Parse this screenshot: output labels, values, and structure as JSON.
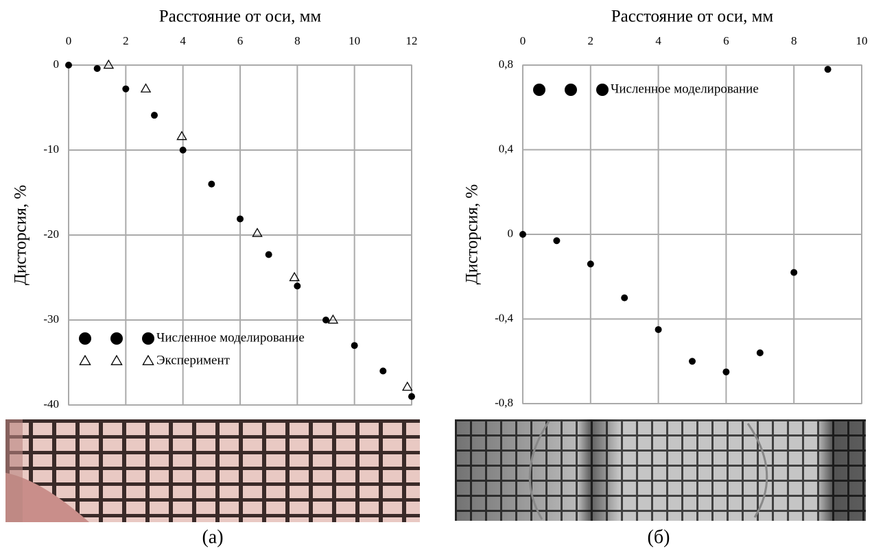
{
  "chart_data": [
    {
      "type": "scatter",
      "title": "Расстояние от оси, мм",
      "ylabel": "Дисторсия, %",
      "caption": "(а)",
      "xlim": [
        0,
        12
      ],
      "xticks": [
        0,
        2,
        4,
        6,
        8,
        10,
        12
      ],
      "ylim": [
        -40,
        0
      ],
      "yticks": [
        0,
        -10,
        -20,
        -30,
        -40
      ],
      "grid": true,
      "legend_position": "lower left",
      "series": [
        {
          "name": "Численное моделирование",
          "color": "#000000",
          "marker": "circle",
          "x": [
            0,
            1,
            2,
            3,
            4,
            5,
            6,
            7,
            8,
            9,
            10,
            11,
            12
          ],
          "values": [
            0,
            -0.4,
            -2.8,
            -5.9,
            -10,
            -14,
            -18.1,
            -22.3,
            -26,
            -30,
            -33,
            -36,
            -39
          ]
        },
        {
          "name": "Эксперимент",
          "color": "#000000",
          "marker": "triangle",
          "x": [
            1.4,
            2.7,
            3.96,
            6.6,
            7.9,
            9.25,
            11.85
          ],
          "values": [
            0,
            -2.8,
            -8.4,
            -19.8,
            -25,
            -30,
            -37.9
          ]
        }
      ]
    },
    {
      "type": "scatter",
      "title": "Расстояние от оси, мм",
      "ylabel": "Дисторсия, %",
      "caption": "(б)",
      "xlim": [
        0,
        10
      ],
      "xticks": [
        0,
        2,
        4,
        6,
        8,
        10
      ],
      "ylim": [
        -0.8,
        0.8
      ],
      "yticks": [
        {
          "value": 0.8,
          "label": "0,8"
        },
        {
          "value": 0.4,
          "label": "0,4"
        },
        0,
        {
          "value": -0.4,
          "label": "-0,4"
        },
        {
          "value": -0.8,
          "label": "-0,8"
        }
      ],
      "grid": true,
      "legend_position": "upper left",
      "series": [
        {
          "name": "Численное моделирование",
          "color": "#000000",
          "marker": "circle",
          "x": [
            0,
            1,
            2,
            3,
            4,
            5,
            6,
            7,
            8,
            9
          ],
          "values": [
            0,
            -0.03,
            -0.14,
            -0.3,
            -0.45,
            -0.6,
            -0.65,
            -0.56,
            -0.18,
            0.78
          ]
        }
      ]
    }
  ]
}
